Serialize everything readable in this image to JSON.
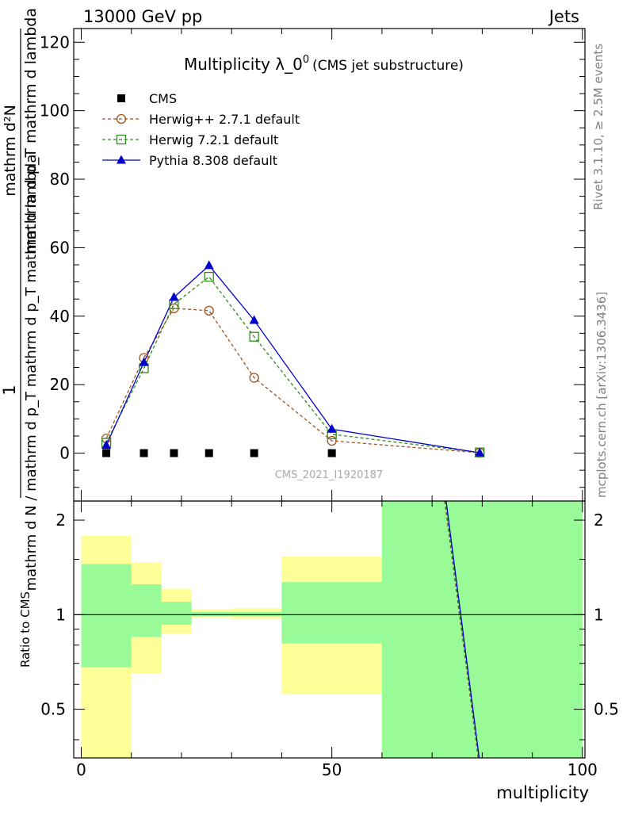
{
  "header": {
    "left": "13000 GeV pp",
    "right": "Jets"
  },
  "side_labels": {
    "rivet": "Rivet 3.1.10, ≥ 2.5M events",
    "mcplots": "mcplots.cern.ch [arXiv:1306.3436]"
  },
  "chart_data": [
    {
      "type": "line",
      "title": "Multiplicity λ_0⁰",
      "title_main": "Multiplicity λ_0",
      "title_sup": "0",
      "subtitle": "(CMS jet substructure)",
      "watermark": "CMS_2021_I1920187",
      "ylabel_numerator_one": "1",
      "ylabel_denominator": "mathrm d N / mathrm d p_T mathrm d p_T mathrm d lambda",
      "ylabel_numerator": "mathrm d²N",
      "ylabel_expression": "mathrm d p_T mathrm d lambda",
      "ylim": [
        -14,
        124
      ],
      "xlim": [
        -1.5,
        100.5
      ],
      "yticks": [
        0,
        20,
        40,
        60,
        80,
        100,
        120
      ],
      "ytick_labels": [
        "0",
        "20",
        "40",
        "60",
        "80",
        "100",
        "120"
      ],
      "legend_position": "top-left",
      "series": [
        {
          "name": "CMS",
          "color": "#000000",
          "marker": "square-filled",
          "style": "markers",
          "x": [
            5,
            12.5,
            18.5,
            25.5,
            34.5,
            50
          ],
          "y": [
            0,
            0,
            0,
            0,
            0,
            0
          ]
        },
        {
          "name": "Herwig++ 2.7.1 default",
          "color": "#a0521e",
          "marker": "circle-open",
          "style": "dashed",
          "x": [
            5,
            12.5,
            18.5,
            25.5,
            34.5,
            50,
            79.5
          ],
          "y": [
            4.3,
            27.8,
            42.3,
            41.6,
            22.0,
            3.6,
            0.1
          ]
        },
        {
          "name": "Herwig 7.2.1 default",
          "color": "#2e8b1e",
          "marker": "square-open",
          "style": "dashed",
          "x": [
            5,
            12.5,
            18.5,
            25.5,
            34.5,
            50,
            79.5
          ],
          "y": [
            3.0,
            24.8,
            43.5,
            51.5,
            34.0,
            5.5,
            0.2
          ]
        },
        {
          "name": "Pythia 8.308 default",
          "color": "#0000cc",
          "marker": "triangle-filled",
          "style": "solid",
          "x": [
            5,
            12.5,
            18.5,
            25.5,
            34.5,
            50,
            79.5
          ],
          "y": [
            2.3,
            26.5,
            45.5,
            54.8,
            38.8,
            7.0,
            0.1
          ]
        }
      ]
    },
    {
      "type": "area",
      "ylabel": "Ratio to CMS",
      "xlabel": "multiplicity",
      "xlim": [
        -1.5,
        100.5
      ],
      "ylim": [
        0.35,
        2.3
      ],
      "xticks": [
        0,
        50,
        100
      ],
      "xtick_labels": [
        "0",
        "50",
        "100"
      ],
      "yticks": [
        0.5,
        1,
        2
      ],
      "ytick_labels": [
        "0.5",
        "1",
        "2"
      ],
      "reference_line": 1,
      "uncertainty_bands": [
        {
          "xmin": 0,
          "xmax": 10,
          "green": [
            0.68,
            1.45
          ],
          "yellow": [
            0.3,
            1.78
          ]
        },
        {
          "xmin": 10,
          "xmax": 16,
          "green": [
            0.85,
            1.25
          ],
          "yellow": [
            0.65,
            1.47
          ]
        },
        {
          "xmin": 16,
          "xmax": 22,
          "green": [
            0.93,
            1.1
          ],
          "yellow": [
            0.87,
            1.21
          ]
        },
        {
          "xmin": 22,
          "xmax": 30,
          "green": [
            0.99,
            1.02
          ],
          "yellow": [
            0.98,
            1.04
          ]
        },
        {
          "xmin": 30,
          "xmax": 40,
          "green": [
            0.99,
            1.02
          ],
          "yellow": [
            0.97,
            1.05
          ]
        },
        {
          "xmin": 40,
          "xmax": 60,
          "green": [
            0.81,
            1.27
          ],
          "yellow": [
            0.56,
            1.53
          ]
        },
        {
          "xmin": 60,
          "xmax": 100,
          "green": [
            0.3,
            2.5
          ],
          "yellow": [
            0.3,
            2.5
          ]
        }
      ],
      "band_colors": {
        "green": "#98fb98",
        "yellow": "#ffff99"
      },
      "ratio_series": [
        {
          "name": "Herwig++ 2.7.1 default",
          "color": "#a0521e",
          "style": "dashed",
          "x": [
            72.5,
            79.2
          ],
          "y": [
            2.3,
            0.35
          ]
        },
        {
          "name": "Herwig 7.2.1 default",
          "color": "#2e8b1e",
          "style": "dashed",
          "x": [
            72.6,
            79.3
          ],
          "y": [
            2.3,
            0.35
          ]
        },
        {
          "name": "Pythia 8.308 default",
          "color": "#0000cc",
          "style": "solid",
          "x": [
            72.8,
            79.4
          ],
          "y": [
            2.3,
            0.35
          ]
        }
      ]
    }
  ]
}
